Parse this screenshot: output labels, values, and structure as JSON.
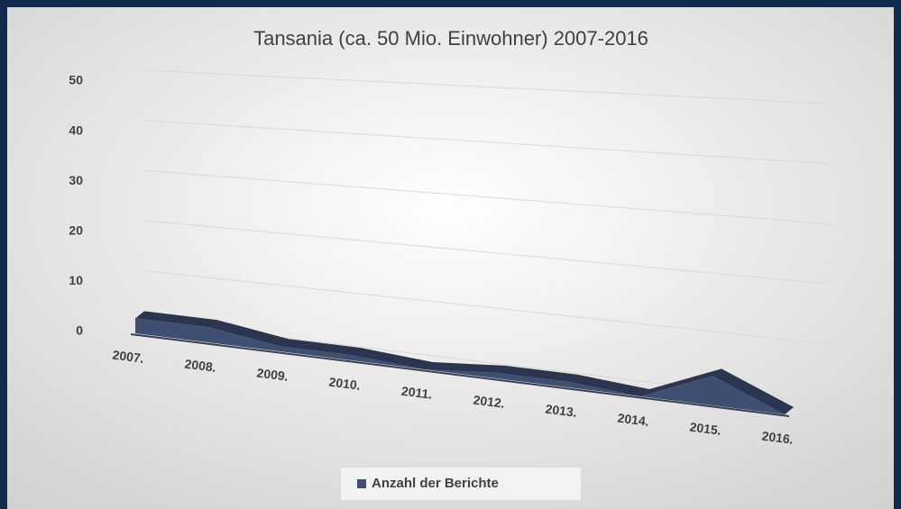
{
  "chart_data": {
    "type": "area3d",
    "title": "Tansania (ca. 50 Mio. Einwohner) 2007-2016",
    "categories": [
      "2007.",
      "2008.",
      "2009.",
      "2010.",
      "2011.",
      "2012.",
      "2013.",
      "2014.",
      "2015.",
      "2016."
    ],
    "series": [
      {
        "name": "Anzahl der Berichte",
        "color": "#3e4f72",
        "values": [
          3,
          3,
          1,
          1,
          0,
          1,
          1,
          0,
          5,
          0
        ]
      }
    ],
    "ylim": [
      0,
      50
    ],
    "yticks": [
      0,
      10,
      20,
      30,
      40,
      50
    ],
    "grid": true,
    "legend": "bottom"
  }
}
